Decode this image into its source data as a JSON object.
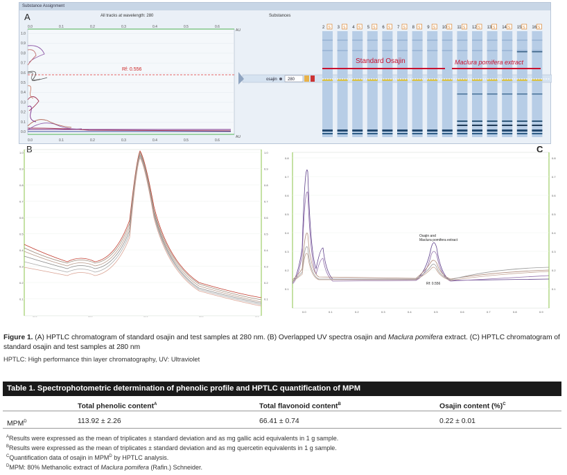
{
  "panelA": {
    "window_title": "Substance Assignment",
    "label": "A",
    "header_tracks": "All tracks at wavelength: 280",
    "header_substances": "Substances",
    "au_label": "AU",
    "x_ticks": [
      "0.0",
      "0.1",
      "0.2",
      "0.3",
      "0.4",
      "0.5",
      "0.6"
    ],
    "y_ticks": [
      "1.0",
      "0.9",
      "0.8",
      "0.7",
      "0.6",
      "0.5",
      "0.4",
      "0.3",
      "0.2",
      "0.1",
      "0.0"
    ],
    "rf_label": "Rf: 0.556",
    "substance_row": {
      "name": "osajin",
      "wavelength": "280"
    },
    "tracks": [
      {
        "num": "2",
        "badge": "S"
      },
      {
        "num": "3",
        "badge": "S"
      },
      {
        "num": "4",
        "badge": "S"
      },
      {
        "num": "5",
        "badge": "S"
      },
      {
        "num": "6",
        "badge": "S"
      },
      {
        "num": "7",
        "badge": "S"
      },
      {
        "num": "8",
        "badge": "S"
      },
      {
        "num": "9",
        "badge": "S"
      },
      {
        "num": "10",
        "badge": "S"
      },
      {
        "num": "11",
        "badge": "S"
      },
      {
        "num": "12",
        "badge": "S"
      },
      {
        "num": "13",
        "badge": "S"
      },
      {
        "num": "14",
        "badge": "S"
      },
      {
        "num": "15",
        "badge": "S"
      },
      {
        "num": "16",
        "badge": "S"
      }
    ],
    "group_standard": "Standard Osajin",
    "group_extract": "Maclura pomifera extract"
  },
  "panelB": {
    "label": "B",
    "x_ticks": [
      "200",
      "250",
      "300",
      "350",
      "400"
    ],
    "y_ticks": [
      "1.0",
      "0.9",
      "0.8",
      "0.7",
      "0.6",
      "0.5",
      "0.4",
      "0.3",
      "0.2",
      "0.1"
    ]
  },
  "panelC": {
    "label": "C",
    "annotation_line1": "Osajin and",
    "annotation_line2": "Maclura pomifera extract",
    "rf_label": "Rf: 0.556",
    "x_ticks": [
      "0.0",
      "0.1",
      "0.2",
      "0.3",
      "0.4",
      "0.5",
      "0.6",
      "0.7",
      "0.8",
      "0.9"
    ],
    "y_ticks": [
      "0.8",
      "0.7",
      "0.6",
      "0.5",
      "0.4",
      "0.3",
      "0.2",
      "0.1"
    ]
  },
  "caption": {
    "fig_label": "Figure 1.",
    "part1": " (A) HPTLC chromatogram of standard osajin and test samples at 280 nm. (B) Overlapped UV spectra osajin and ",
    "italic1": "Maclura pomifera",
    "part2": " extract. (C) HPTLC chromatogram of standard osajin and test samples at 280 nm",
    "abbreviations": "HPTLC: High performance thin layer chromatography, UV: Ultraviolet"
  },
  "table": {
    "title": "Table 1. Spectrophotometric determination of phenolic profile and HPTLC quantification of MPM",
    "headers": [
      {
        "text": "",
        "sup": ""
      },
      {
        "text": "Total phenolic content",
        "sup": "A"
      },
      {
        "text": "Total flavonoid content",
        "sup": "B"
      },
      {
        "text": "Osajin content (%)",
        "sup": "C"
      }
    ],
    "row": {
      "name": "MPM",
      "name_sup": "D",
      "phenolic": "113.92 ± 2.26",
      "flavonoid": "66.41 ± 0.74",
      "osajin": "0.22 ± 0.01"
    },
    "footnotes": [
      {
        "sup": "A",
        "text": "Results were expressed as the mean of triplicates ± standard deviation and as mg gallic acid equivalents in 1 g sample."
      },
      {
        "sup": "B",
        "text": "Results were expressed as the mean of triplicates ± standard deviation and as mg quercetin equivalents in 1 g sample."
      },
      {
        "sup": "C",
        "text": "Quantification data of osajin in MPM",
        "sup2": "D",
        "text2": " by HPTLC analysis."
      },
      {
        "sup": "D",
        "text": "MPM: 80% Methanolic extract of ",
        "italic": "Maclura pomifera",
        "text2": " (Rafin.) Schneider."
      }
    ]
  }
}
